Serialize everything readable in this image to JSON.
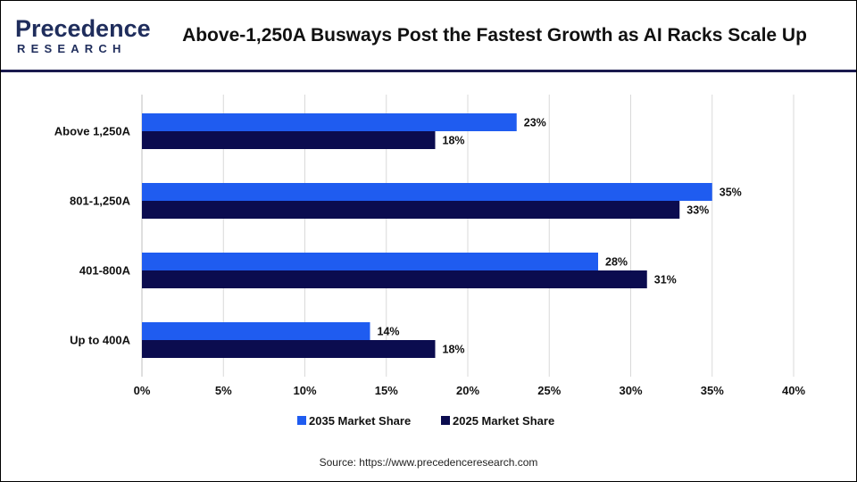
{
  "header": {
    "logo_word": "Precedence",
    "logo_sub": "RESEARCH",
    "title": "Above-1,250A Busways Post the Fastest Growth as AI Racks Scale Up"
  },
  "footer": {
    "source": "Source: https://www.precedenceresearch.com"
  },
  "chart_data": {
    "type": "bar",
    "orientation": "horizontal",
    "categories": [
      "Above 1,250A",
      "801-1,250A",
      "401-800A",
      "Up to 400A"
    ],
    "series": [
      {
        "name": "2035 Market Share",
        "values": [
          23,
          35,
          28,
          14
        ],
        "labels": [
          "23%",
          "35%",
          "28%",
          "14%"
        ],
        "color": "#1f5cf0"
      },
      {
        "name": "2025 Market Share",
        "values": [
          18,
          33,
          31,
          18
        ],
        "labels": [
          "18%",
          "33%",
          "31%",
          "18%"
        ],
        "color": "#0b0c4f"
      }
    ],
    "x_ticks": [
      "0%",
      "5%",
      "10%",
      "15%",
      "20%",
      "25%",
      "30%",
      "35%",
      "40%"
    ],
    "xlim": [
      0,
      40
    ],
    "grid": true,
    "legend_position": "bottom"
  },
  "colors": {
    "brand_navy": "#1f2d5c",
    "header_rule": "#1a1a4e",
    "gridline": "#d9d9d9"
  }
}
